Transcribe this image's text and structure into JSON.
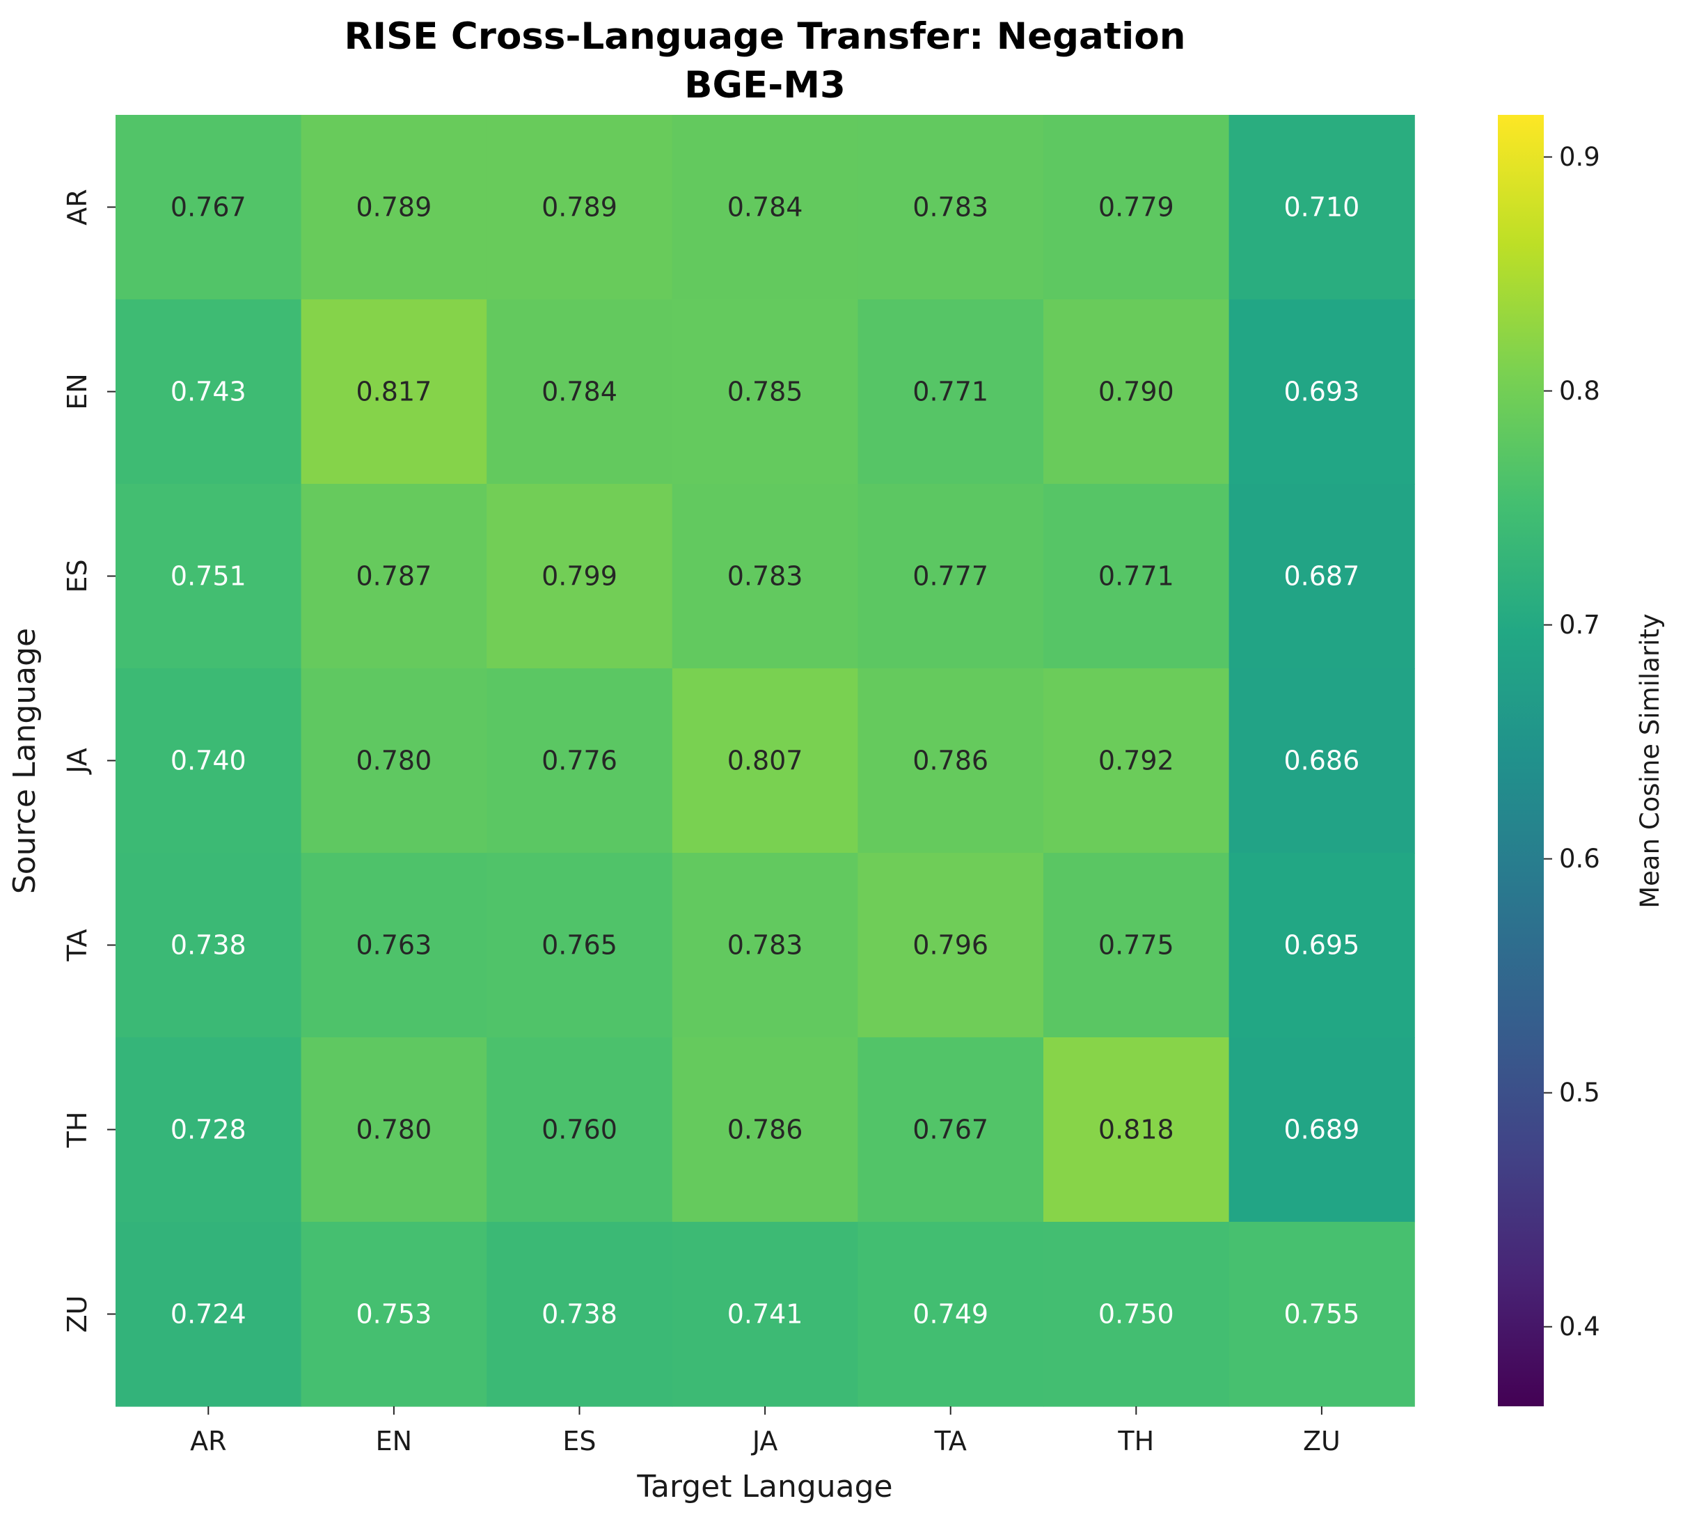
{
  "chart_data": {
    "type": "heatmap",
    "title": "RISE Cross-Language Transfer: Negation",
    "subtitle": "BGE-M3",
    "xlabel": "Target Language",
    "ylabel": "Source Language",
    "x_categories": [
      "AR",
      "EN",
      "ES",
      "JA",
      "TA",
      "TH",
      "ZU"
    ],
    "y_categories": [
      "AR",
      "EN",
      "ES",
      "JA",
      "TA",
      "TH",
      "ZU"
    ],
    "values": [
      [
        0.767,
        0.789,
        0.789,
        0.784,
        0.783,
        0.779,
        0.71
      ],
      [
        0.743,
        0.817,
        0.784,
        0.785,
        0.771,
        0.79,
        0.693
      ],
      [
        0.751,
        0.787,
        0.799,
        0.783,
        0.777,
        0.771,
        0.687
      ],
      [
        0.74,
        0.78,
        0.776,
        0.807,
        0.786,
        0.792,
        0.686
      ],
      [
        0.738,
        0.763,
        0.765,
        0.783,
        0.796,
        0.775,
        0.695
      ],
      [
        0.728,
        0.78,
        0.76,
        0.786,
        0.767,
        0.818,
        0.689
      ],
      [
        0.724,
        0.753,
        0.738,
        0.741,
        0.749,
        0.75,
        0.755
      ]
    ],
    "value_format": "3 decimals",
    "colormap": "viridis",
    "colorbar": {
      "label": "Mean Cosine Similarity",
      "range": [
        0.366,
        0.918
      ],
      "ticks": [
        0.4,
        0.5,
        0.6,
        0.7,
        0.8,
        0.9
      ],
      "tick_labels": [
        "0.4",
        "0.5",
        "0.6",
        "0.7",
        "0.8",
        "0.9"
      ]
    },
    "grid": false,
    "annotation_colors": {
      "dark_text": "#262626",
      "light_text": "#ffffff"
    }
  }
}
